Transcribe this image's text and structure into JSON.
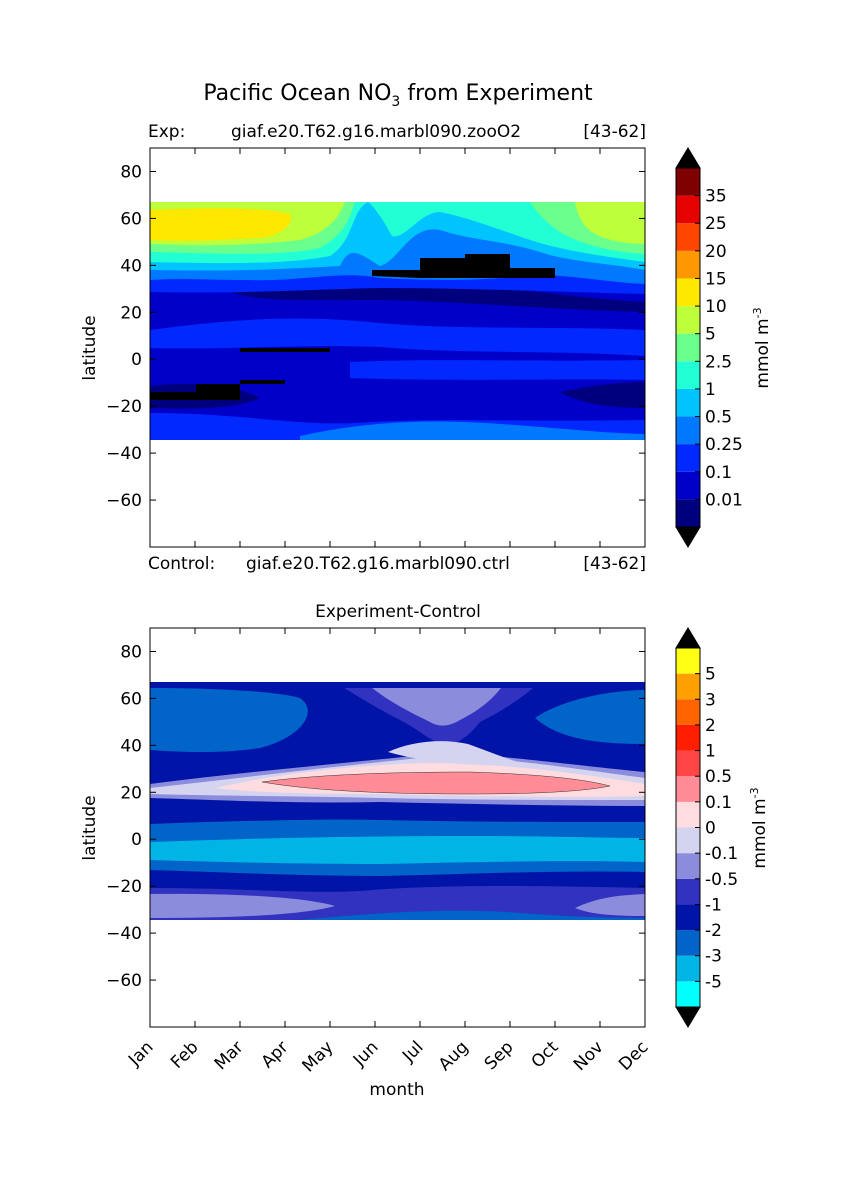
{
  "figure": {
    "title_main": "Pacific Ocean NO",
    "title_sub": "3",
    "title_rest": " from Experiment"
  },
  "chart_data": [
    {
      "type": "heatmap",
      "panel": "experiment",
      "info_left": "Exp:",
      "info_mid": "giaf.e20.T62.g16.marbl090.zooO2",
      "info_right": "[43-62]",
      "footer_left": "Control:",
      "footer_mid": "giaf.e20.T62.g16.marbl090.ctrl",
      "footer_right": "[43-62]",
      "xlabel": "",
      "ylabel": "latitude",
      "x_tick_labels": [
        "Jan",
        "Feb",
        "Mar",
        "Apr",
        "May",
        "Jun",
        "Jul",
        "Aug",
        "Sep",
        "Oct",
        "Nov",
        "Dec"
      ],
      "y_ticks": [
        80,
        60,
        40,
        20,
        0,
        -20,
        -40,
        -60
      ],
      "ylim": [
        -80,
        90
      ],
      "data_lat_range": [
        -34,
        67
      ],
      "colorbar": {
        "label": "mmol m",
        "label_sup": "-3",
        "levels": [
          "0.01",
          "0.1",
          "0.25",
          "0.5",
          "1",
          "2.5",
          "5",
          "10",
          "15",
          "20",
          "25",
          "35"
        ],
        "colors": [
          "#00007f",
          "#0000c8",
          "#0028ff",
          "#0078ff",
          "#00c4ff",
          "#22ffd4",
          "#6bff8c",
          "#bcff3a",
          "#ffe800",
          "#ff9800",
          "#ff4600",
          "#e60000",
          "#7f0000"
        ],
        "extend": "both"
      },
      "regions": [
        {
          "desc": "high-lat winter",
          "months": [
            0,
            3.5
          ],
          "lat": [
            52,
            62
          ],
          "level_color": "#ffe800",
          "value": "10-15"
        },
        {
          "desc": "summer subarctic",
          "months": [
            5,
            10
          ],
          "lat": [
            36,
            44
          ],
          "level_color": "#000000",
          "value": "<0.01"
        },
        {
          "desc": "south band",
          "months": [
            0,
            2
          ],
          "lat": [
            -18,
            -12
          ],
          "level_color": "#000000",
          "value": "<0.01"
        }
      ]
    },
    {
      "type": "heatmap",
      "panel": "difference",
      "title": "Experiment-Control",
      "xlabel": "month",
      "ylabel": "latitude",
      "x_tick_labels": [
        "Jan",
        "Feb",
        "Mar",
        "Apr",
        "May",
        "Jun",
        "Jul",
        "Aug",
        "Sep",
        "Oct",
        "Nov",
        "Dec"
      ],
      "y_ticks": [
        80,
        60,
        40,
        20,
        0,
        -20,
        -40,
        -60
      ],
      "ylim": [
        -80,
        90
      ],
      "data_lat_range": [
        -34,
        67
      ],
      "colorbar": {
        "label": "mmol m",
        "label_sup": "-3",
        "levels": [
          "-5",
          "-3",
          "-2",
          "-1",
          "-0.5",
          "-0.1",
          "0",
          "0.1",
          "0.5",
          "1",
          "2",
          "3",
          "5"
        ],
        "colors": [
          "#00ffff",
          "#00b4e6",
          "#0064c8",
          "#0014a8",
          "#3232c0",
          "#8c8cdc",
          "#d4d4f0",
          "#ffdce0",
          "#ff8c96",
          "#ff4646",
          "#ff1e00",
          "#ff6400",
          "#ffa000",
          "#ffff14"
        ],
        "extend": "both"
      },
      "regions": [
        {
          "desc": "subtropical positive",
          "months": [
            2.5,
            10.5
          ],
          "lat": [
            22,
            30
          ],
          "level_color": "#ff8c96",
          "value": "0.1-0.5"
        },
        {
          "desc": "tropical negative",
          "months": [
            0,
            11
          ],
          "lat": [
            -10,
            -1
          ],
          "level_color": "#00b4e6",
          "value": "-5 to -3"
        },
        {
          "desc": "northern winter",
          "months": [
            0,
            3.5
          ],
          "lat": [
            38,
            60
          ],
          "level_color": "#0064c8",
          "value": "-3 to -2"
        }
      ]
    }
  ]
}
